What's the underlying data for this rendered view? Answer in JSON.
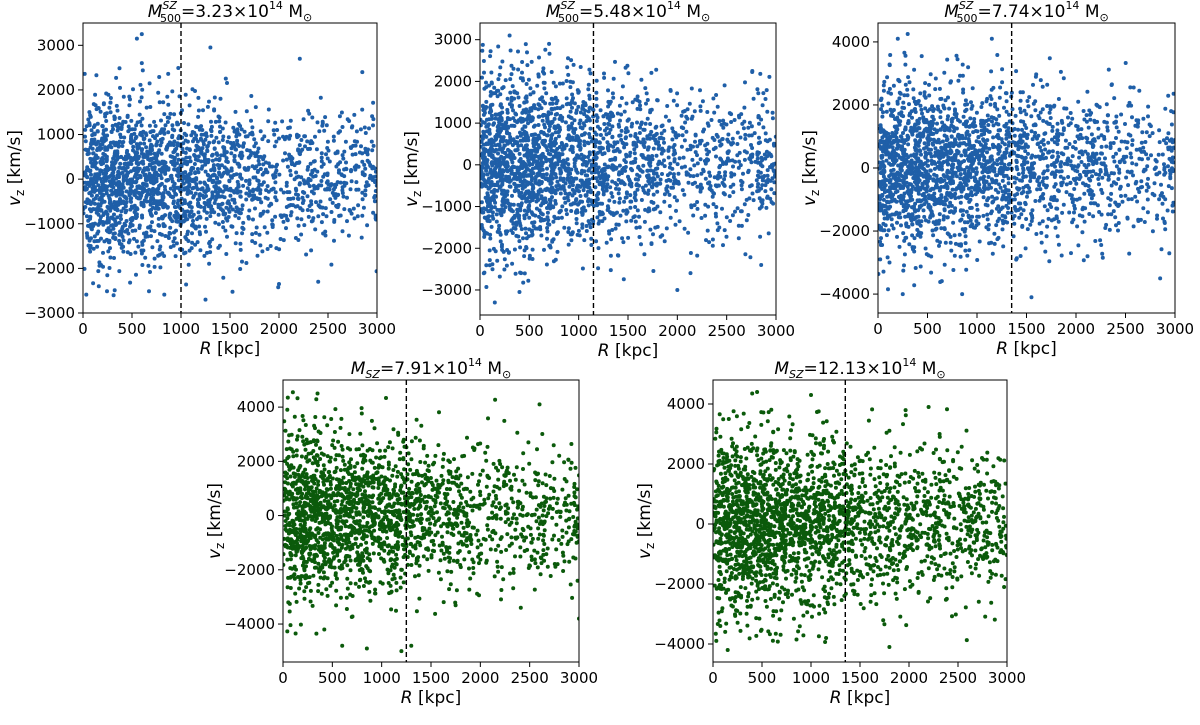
{
  "figure": {
    "colors": {
      "blue": "#1f5fa8",
      "green": "#0b5a0b"
    }
  },
  "chart_data": [
    {
      "type": "scatter",
      "title": {
        "sym": "M",
        "sub": "500",
        "sup": "SZ",
        "text": "=3.23×10",
        "exp": "14",
        "unit": " M",
        "sun": "⊙"
      },
      "xlabel": {
        "sym": "R",
        "unit": " [kpc]"
      },
      "ylabel": {
        "sym": "v",
        "sub": "z",
        "unit": " [km/s]"
      },
      "xlim": [
        0,
        3000
      ],
      "ylim": [
        -3000,
        3500
      ],
      "xticks": [
        0,
        500,
        1000,
        1500,
        2000,
        2500,
        3000
      ],
      "yticks": [
        -3000,
        -2000,
        -1000,
        0,
        1000,
        2000,
        3000
      ],
      "vline": 1000,
      "color": "blue",
      "n_points": 2200,
      "seed": 11,
      "sigma_inner": 900,
      "sigma_outer": 700,
      "outliers": [
        [
          600,
          3250
        ],
        [
          550,
          3150
        ],
        [
          1300,
          2950
        ],
        [
          600,
          2600
        ],
        [
          2400,
          -2300
        ],
        [
          1250,
          -2700
        ],
        [
          2850,
          2400
        ],
        [
          2000,
          -2350
        ]
      ]
    },
    {
      "type": "scatter",
      "title": {
        "sym": "M",
        "sub": "500",
        "sup": "SZ",
        "text": "=5.48×10",
        "exp": "14",
        "unit": " M",
        "sun": "⊙"
      },
      "xlabel": {
        "sym": "R",
        "unit": " [kpc]"
      },
      "ylabel": {
        "sym": "v",
        "sub": "z",
        "unit": " [km/s]"
      },
      "xlim": [
        0,
        3000
      ],
      "ylim": [
        -3600,
        3400
      ],
      "xticks": [
        0,
        500,
        1000,
        1500,
        2000,
        2500,
        3000
      ],
      "yticks": [
        -3000,
        -2000,
        -1000,
        0,
        1000,
        2000,
        3000
      ],
      "vline": 1150,
      "color": "blue",
      "n_points": 2400,
      "seed": 23,
      "sigma_inner": 1050,
      "sigma_outer": 850,
      "outliers": [
        [
          300,
          3100
        ],
        [
          150,
          -3300
        ],
        [
          2000,
          -3000
        ],
        [
          700,
          2900
        ],
        [
          2850,
          -2400
        ],
        [
          400,
          -3050
        ]
      ]
    },
    {
      "type": "scatter",
      "title": {
        "sym": "M",
        "sub": "500",
        "sup": "SZ",
        "text": "=7.74×10",
        "exp": "14",
        "unit": " M",
        "sun": "⊙"
      },
      "xlabel": {
        "sym": "R",
        "unit": " [kpc]"
      },
      "ylabel": {
        "sym": "v",
        "sub": "z",
        "unit": " [km/s]"
      },
      "xlim": [
        0,
        3000
      ],
      "ylim": [
        -4600,
        4600
      ],
      "xticks": [
        0,
        500,
        1000,
        1500,
        2000,
        2500,
        3000
      ],
      "yticks": [
        -4000,
        -2000,
        0,
        2000,
        4000
      ],
      "vline": 1350,
      "color": "blue",
      "n_points": 2300,
      "seed": 37,
      "sigma_inner": 1400,
      "sigma_outer": 1100,
      "outliers": [
        [
          300,
          4250
        ],
        [
          200,
          4100
        ],
        [
          1150,
          4100
        ],
        [
          250,
          -4000
        ],
        [
          1550,
          -4100
        ],
        [
          850,
          -4000
        ],
        [
          2850,
          -3500
        ]
      ]
    },
    {
      "type": "scatter",
      "title": {
        "sym": "M",
        "sub": "SZ",
        "sup": "",
        "text": "=7.91×10",
        "exp": "14",
        "unit": " M",
        "sun": "⊙"
      },
      "xlabel": {
        "sym": "R",
        "unit": " [kpc]"
      },
      "ylabel": {
        "sym": "v",
        "sub": "z",
        "unit": " [km/s]"
      },
      "xlim": [
        0,
        3000
      ],
      "ylim": [
        -5400,
        5000
      ],
      "xticks": [
        0,
        500,
        1000,
        1500,
        2000,
        2500,
        3000
      ],
      "yticks": [
        -4000,
        -2000,
        0,
        2000,
        4000
      ],
      "vline": 1250,
      "color": "green",
      "n_points": 2100,
      "seed": 51,
      "sigma_inner": 1500,
      "sigma_outer": 1200,
      "outliers": [
        [
          100,
          4550
        ],
        [
          350,
          4500
        ],
        [
          2600,
          4100
        ],
        [
          600,
          -4800
        ],
        [
          1300,
          -4800
        ],
        [
          1200,
          -5000
        ],
        [
          850,
          -4900
        ],
        [
          3000,
          -3800
        ]
      ]
    },
    {
      "type": "scatter",
      "title": {
        "sym": "M",
        "sub": "SZ",
        "sup": "",
        "text": "=12.13×10",
        "exp": "14",
        "unit": " M",
        "sun": "⊙"
      },
      "xlabel": {
        "sym": "R",
        "unit": " [kpc]"
      },
      "ylabel": {
        "sym": "v",
        "sub": "z",
        "unit": " [km/s]"
      },
      "xlim": [
        0,
        3000
      ],
      "ylim": [
        -4600,
        4800
      ],
      "xticks": [
        0,
        500,
        1000,
        1500,
        2000,
        2500,
        3000
      ],
      "yticks": [
        -4000,
        -2000,
        0,
        2000,
        4000
      ],
      "vline": 1350,
      "color": "green",
      "n_points": 2400,
      "seed": 67,
      "sigma_inner": 1500,
      "sigma_outer": 1150,
      "outliers": [
        [
          450,
          4400
        ],
        [
          400,
          4350
        ],
        [
          1800,
          -4100
        ],
        [
          2200,
          3900
        ],
        [
          150,
          -4200
        ],
        [
          1000,
          4300
        ]
      ]
    }
  ]
}
